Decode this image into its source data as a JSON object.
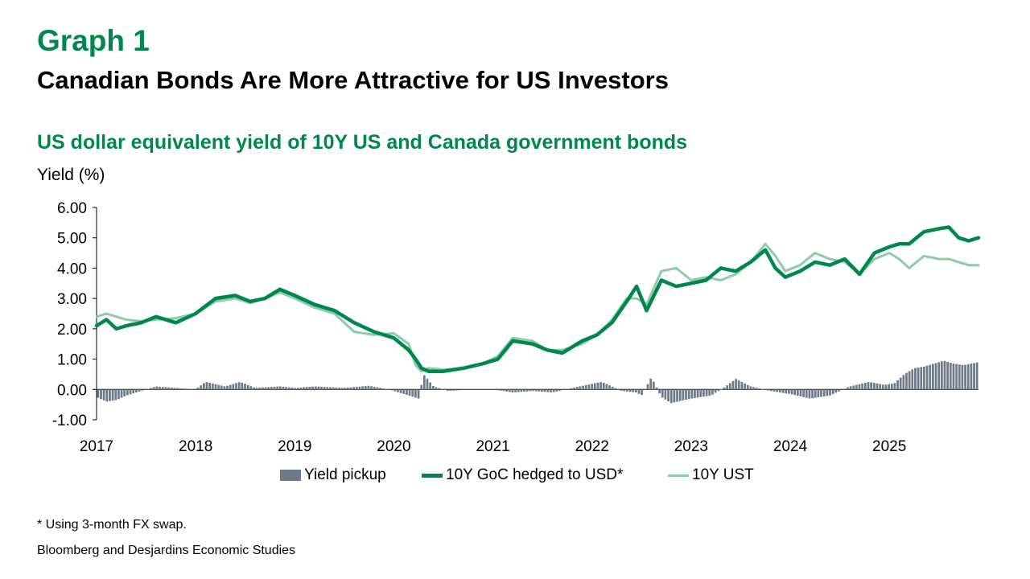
{
  "kicker": "Graph 1",
  "title": "Canadian Bonds Are More Attractive for US Investors",
  "subtitle": "US dollar equivalent yield of 10Y US and Canada government bonds",
  "footnote": "* Using 3-month FX swap.",
  "source": "Bloomberg and Desjardins Economic Studies",
  "colors": {
    "accent": "#00874E",
    "goc": "#00874E",
    "ust": "#8FCBA9",
    "pickup": "#6E7A86"
  },
  "chart_data": {
    "type": "line",
    "ylabel": "Yield (%)",
    "ylim": [
      -1.0,
      6.0
    ],
    "yticks": [
      "6.00",
      "5.00",
      "4.00",
      "3.00",
      "2.00",
      "1.00",
      "0.00",
      "-1.00"
    ],
    "xlim": [
      2017.0,
      2025.9
    ],
    "xticks": [
      "2017",
      "2018",
      "2019",
      "2020",
      "2021",
      "2022",
      "2023",
      "2024",
      "2025"
    ],
    "legend_position": "bottom",
    "series": [
      {
        "name": "Yield pickup",
        "kind": "bar",
        "x": [
          2017.0,
          2017.1,
          2017.2,
          2017.3,
          2017.45,
          2017.6,
          2017.8,
          2018.0,
          2018.1,
          2018.3,
          2018.45,
          2018.6,
          2018.85,
          2019.0,
          2019.2,
          2019.5,
          2019.75,
          2019.95,
          2020.1,
          2020.25,
          2020.3,
          2020.4,
          2020.55,
          2020.8,
          2021.0,
          2021.2,
          2021.4,
          2021.6,
          2021.8,
          2021.95,
          2022.1,
          2022.3,
          2022.45,
          2022.5,
          2022.6,
          2022.7,
          2022.8,
          2023.0,
          2023.2,
          2023.35,
          2023.45,
          2023.6,
          2023.8,
          2024.0,
          2024.2,
          2024.4,
          2024.6,
          2024.8,
          2024.95,
          2025.05,
          2025.15,
          2025.25,
          2025.35,
          2025.45,
          2025.55,
          2025.65,
          2025.75,
          2025.9
        ],
        "values": [
          -0.25,
          -0.4,
          -0.35,
          -0.2,
          -0.05,
          0.1,
          0.05,
          0.0,
          0.25,
          0.1,
          0.25,
          0.05,
          0.1,
          0.05,
          0.1,
          0.05,
          0.12,
          0.0,
          -0.15,
          -0.3,
          0.5,
          0.1,
          -0.05,
          0.0,
          0.0,
          -0.1,
          -0.05,
          -0.1,
          0.05,
          0.15,
          0.25,
          -0.05,
          -0.1,
          -0.2,
          0.4,
          -0.25,
          -0.45,
          -0.3,
          -0.2,
          0.1,
          0.35,
          0.1,
          -0.05,
          -0.15,
          -0.3,
          -0.2,
          0.1,
          0.25,
          0.15,
          0.2,
          0.5,
          0.7,
          0.75,
          0.85,
          0.95,
          0.85,
          0.8,
          0.9
        ]
      },
      {
        "name": "10Y GoC hedged to USD*",
        "kind": "line",
        "x": [
          2017.0,
          2017.1,
          2017.2,
          2017.3,
          2017.45,
          2017.6,
          2017.8,
          2018.0,
          2018.2,
          2018.4,
          2018.55,
          2018.7,
          2018.85,
          2019.0,
          2019.2,
          2019.4,
          2019.6,
          2019.8,
          2020.0,
          2020.15,
          2020.22,
          2020.28,
          2020.35,
          2020.5,
          2020.7,
          2020.9,
          2021.05,
          2021.2,
          2021.4,
          2021.55,
          2021.7,
          2021.9,
          2022.05,
          2022.2,
          2022.35,
          2022.45,
          2022.55,
          2022.7,
          2022.85,
          2023.0,
          2023.15,
          2023.3,
          2023.45,
          2023.6,
          2023.75,
          2023.85,
          2023.95,
          2024.1,
          2024.25,
          2024.4,
          2024.55,
          2024.7,
          2024.85,
          2025.0,
          2025.1,
          2025.2,
          2025.35,
          2025.5,
          2025.6,
          2025.7,
          2025.8,
          2025.9
        ],
        "values": [
          2.1,
          2.3,
          2.0,
          2.1,
          2.2,
          2.4,
          2.2,
          2.5,
          3.0,
          3.1,
          2.9,
          3.0,
          3.3,
          3.1,
          2.8,
          2.6,
          2.2,
          1.9,
          1.7,
          1.3,
          1.0,
          0.7,
          0.6,
          0.6,
          0.7,
          0.85,
          1.0,
          1.6,
          1.5,
          1.3,
          1.2,
          1.6,
          1.8,
          2.2,
          2.9,
          3.4,
          2.6,
          3.6,
          3.4,
          3.5,
          3.6,
          4.0,
          3.9,
          4.2,
          4.6,
          4.0,
          3.7,
          3.9,
          4.2,
          4.1,
          4.3,
          3.8,
          4.5,
          4.7,
          4.8,
          4.8,
          5.2,
          5.3,
          5.35,
          5.0,
          4.9,
          5.0
        ]
      },
      {
        "name": "10Y UST",
        "kind": "line",
        "x": [
          2017.0,
          2017.1,
          2017.2,
          2017.3,
          2017.45,
          2017.6,
          2017.8,
          2018.0,
          2018.2,
          2018.4,
          2018.55,
          2018.7,
          2018.85,
          2019.0,
          2019.2,
          2019.4,
          2019.6,
          2019.8,
          2020.0,
          2020.15,
          2020.22,
          2020.28,
          2020.35,
          2020.5,
          2020.7,
          2020.9,
          2021.05,
          2021.2,
          2021.4,
          2021.55,
          2021.7,
          2021.9,
          2022.05,
          2022.2,
          2022.35,
          2022.45,
          2022.55,
          2022.7,
          2022.85,
          2023.0,
          2023.15,
          2023.3,
          2023.45,
          2023.6,
          2023.75,
          2023.85,
          2023.95,
          2024.1,
          2024.25,
          2024.4,
          2024.55,
          2024.7,
          2024.85,
          2025.0,
          2025.1,
          2025.2,
          2025.35,
          2025.5,
          2025.6,
          2025.7,
          2025.8,
          2025.9
        ],
        "values": [
          2.4,
          2.5,
          2.4,
          2.3,
          2.25,
          2.3,
          2.35,
          2.5,
          2.9,
          3.0,
          2.85,
          3.0,
          3.2,
          3.0,
          2.7,
          2.5,
          1.9,
          1.8,
          1.85,
          1.5,
          0.8,
          0.6,
          0.7,
          0.65,
          0.7,
          0.85,
          1.1,
          1.7,
          1.6,
          1.3,
          1.3,
          1.5,
          1.8,
          2.3,
          3.0,
          3.0,
          2.8,
          3.9,
          4.0,
          3.6,
          3.7,
          3.6,
          3.8,
          4.2,
          4.8,
          4.4,
          3.9,
          4.1,
          4.5,
          4.3,
          4.2,
          3.8,
          4.3,
          4.5,
          4.3,
          4.0,
          4.4,
          4.3,
          4.3,
          4.2,
          4.1,
          4.1
        ]
      }
    ]
  }
}
